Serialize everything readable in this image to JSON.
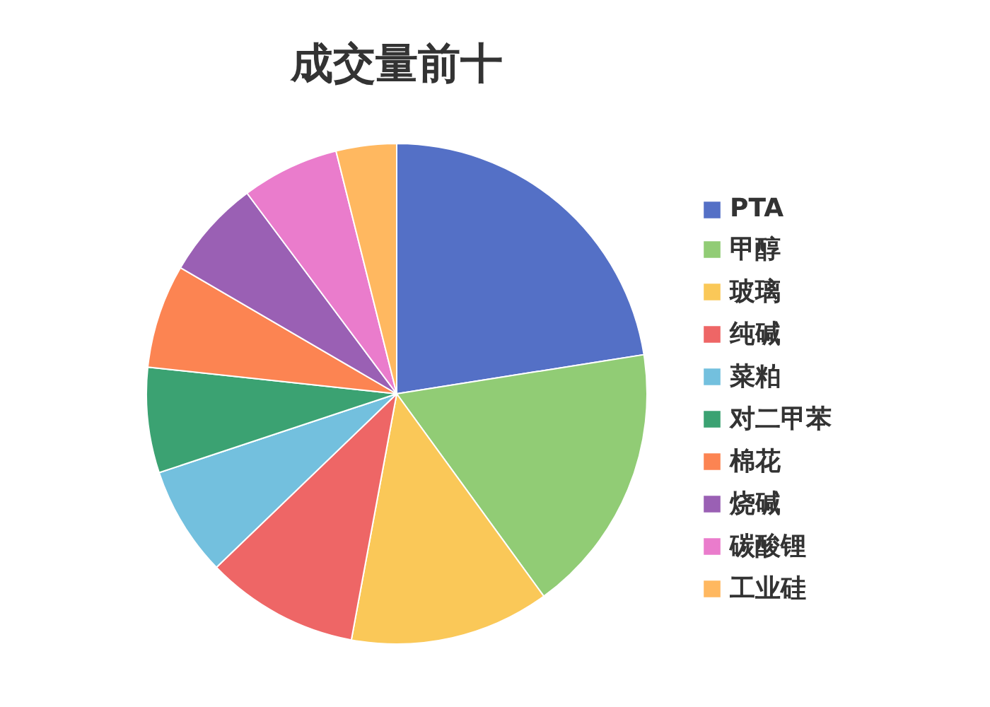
{
  "chart_data": {
    "type": "pie",
    "title": "成交量前十",
    "categories": [
      "PTA",
      "甲醇",
      "玻璃",
      "纯碱",
      "菜粕",
      "对二甲苯",
      "棉花",
      "烧碱",
      "碳酸锂",
      "工业硅"
    ],
    "values": [
      22.5,
      17.5,
      12.9,
      9.9,
      7.1,
      6.8,
      6.7,
      6.4,
      6.3,
      3.9
    ],
    "colors": [
      "#5470c6",
      "#91cc75",
      "#fac858",
      "#ee6666",
      "#73c0de",
      "#3ba272",
      "#fc8452",
      "#9a60b4",
      "#ea7ccc",
      "#ffb860"
    ],
    "legend": "right"
  }
}
